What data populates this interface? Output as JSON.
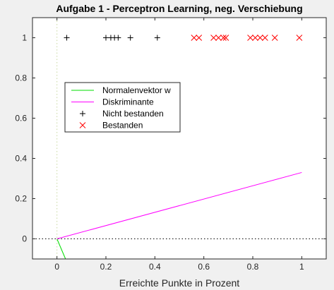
{
  "chart_data": {
    "type": "scatter",
    "title": "Aufgabe 1 - Perceptron Learning, neg. Verschiebung",
    "xlabel": "Erreichte Punkte in Prozent",
    "ylabel": "",
    "xlim": [
      -0.1,
      1.1
    ],
    "ylim": [
      -0.1,
      1.1
    ],
    "xticks": [
      0,
      0.2,
      0.4,
      0.6,
      0.8,
      1
    ],
    "xtick_labels": [
      "0",
      "0.2",
      "0.4",
      "0.6",
      "0.8",
      "1"
    ],
    "yticks": [
      0,
      0.2,
      0.4,
      0.6,
      0.8,
      1
    ],
    "ytick_labels": [
      "0",
      "0.2",
      "0.4",
      "0.6",
      "0.8",
      "1"
    ],
    "grid": false,
    "legend_position": "upper-left",
    "reference_lines": [
      {
        "orientation": "vertical",
        "value": 0,
        "color": "#c8d8a0",
        "style": "dotted"
      },
      {
        "orientation": "horizontal",
        "value": 0,
        "color": "#000000",
        "style": "dotted"
      }
    ],
    "series": [
      {
        "name": "Normalenvektor w",
        "kind": "line",
        "color": "#00dd00",
        "x": [
          0,
          0.035
        ],
        "y": [
          0,
          -0.1
        ]
      },
      {
        "name": "Diskriminante",
        "kind": "line",
        "color": "#ff00ff",
        "x": [
          0,
          1
        ],
        "y": [
          0,
          0.33
        ]
      },
      {
        "name": "Nicht bestanden",
        "kind": "scatter",
        "marker": "plus",
        "color": "#000000",
        "x": [
          0.04,
          0.2,
          0.22,
          0.235,
          0.25,
          0.3,
          0.41
        ],
        "y": [
          1,
          1,
          1,
          1,
          1,
          1,
          1
        ]
      },
      {
        "name": "Bestanden",
        "kind": "scatter",
        "marker": "x",
        "color": "#ff0000",
        "x": [
          0.56,
          0.58,
          0.64,
          0.66,
          0.68,
          0.69,
          0.79,
          0.81,
          0.83,
          0.85,
          0.89,
          0.99
        ],
        "y": [
          1,
          1,
          1,
          1,
          1,
          1,
          1,
          1,
          1,
          1,
          1,
          1
        ]
      }
    ]
  }
}
